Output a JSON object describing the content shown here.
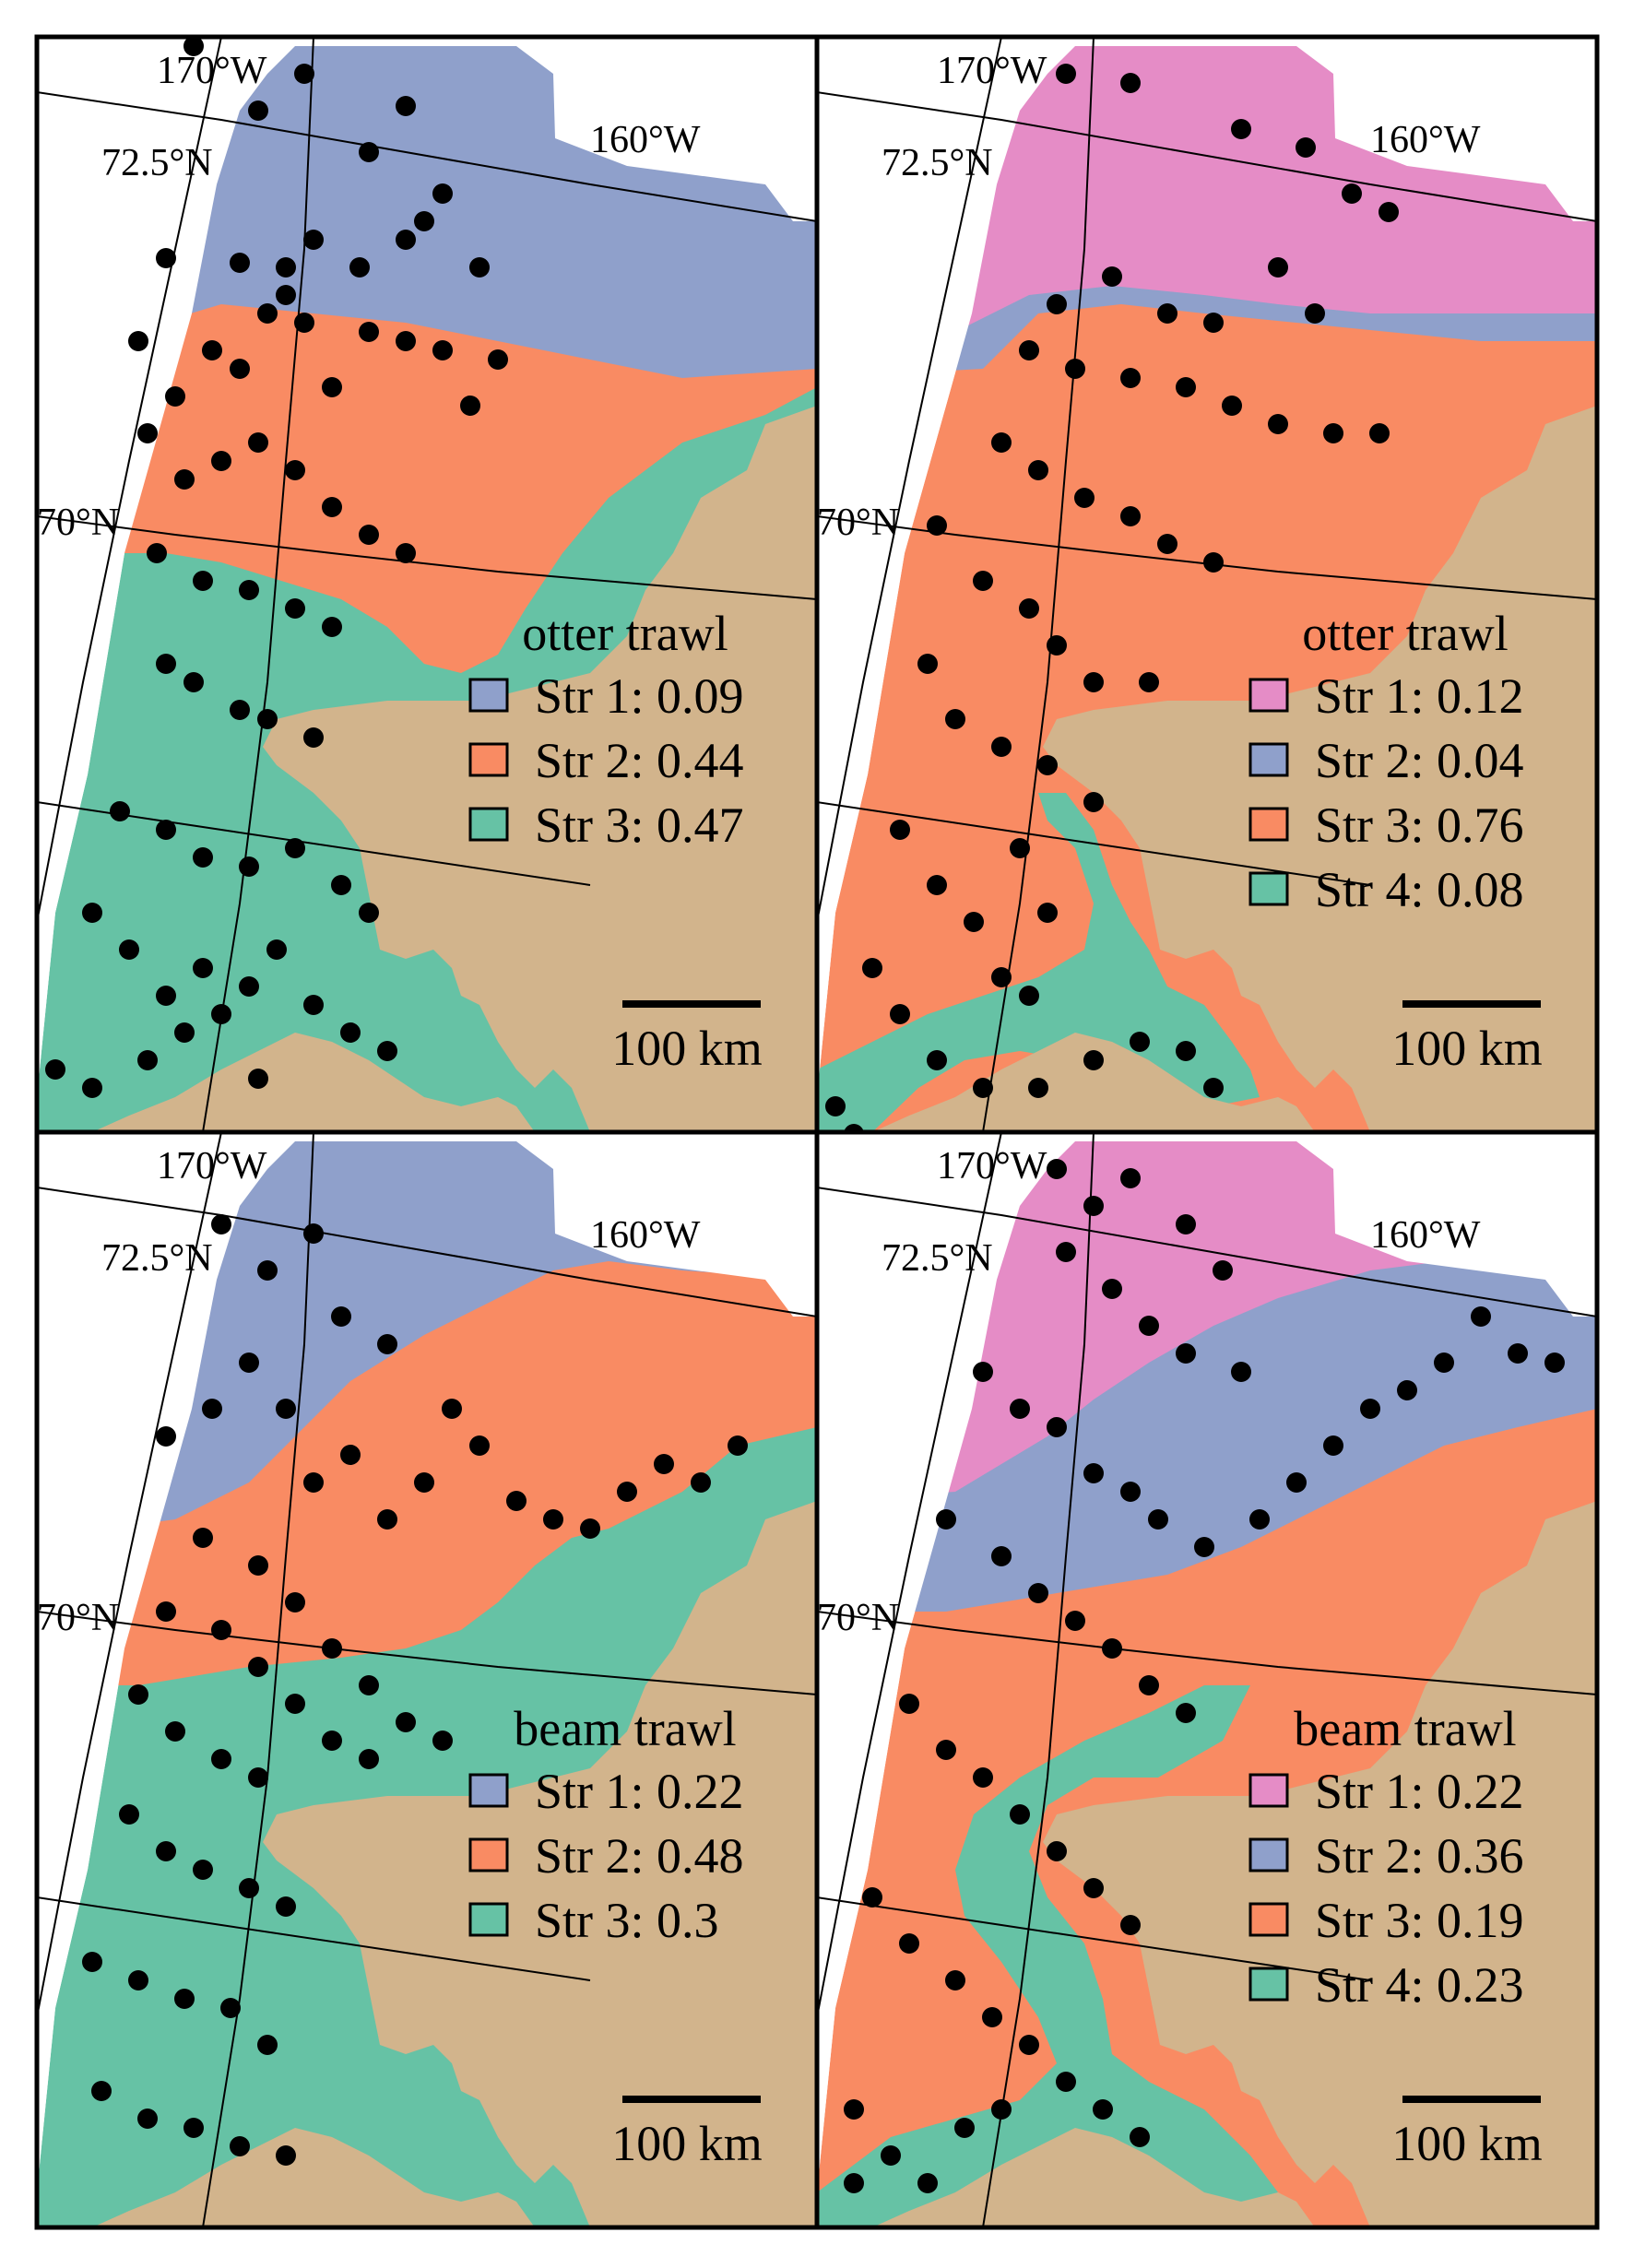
{
  "colors": {
    "land": "#d2b48c",
    "pink": "#e58cc6",
    "blue": "#8fa0cb",
    "orange": "#f98b63",
    "green": "#66c2a5",
    "station": "#000000",
    "water": "#ffffff"
  },
  "coord_labels": {
    "lon_170": "170°W",
    "lon_160": "160°W",
    "lat_72_5": "72.5°N",
    "lat_70": "70°N"
  },
  "scale_bar": {
    "label": "100 km"
  },
  "panels": [
    {
      "gear": "otter trawl",
      "legend": [
        {
          "label": "Str 1: 0.09",
          "color": "#8fa0cb"
        },
        {
          "label": "Str 2: 0.44",
          "color": "#f98b63"
        },
        {
          "label": "Str 3: 0.47",
          "color": "#66c2a5"
        }
      ]
    },
    {
      "gear": "otter trawl",
      "legend": [
        {
          "label": "Str 1: 0.12",
          "color": "#e58cc6"
        },
        {
          "label": "Str 2: 0.04",
          "color": "#8fa0cb"
        },
        {
          "label": "Str 3: 0.76",
          "color": "#f98b63"
        },
        {
          "label": "Str 4: 0.08",
          "color": "#66c2a5"
        }
      ]
    },
    {
      "gear": "beam trawl",
      "legend": [
        {
          "label": "Str 1: 0.22",
          "color": "#8fa0cb"
        },
        {
          "label": "Str 2: 0.48",
          "color": "#f98b63"
        },
        {
          "label": "Str 3: 0.3",
          "color": "#66c2a5"
        }
      ]
    },
    {
      "gear": "beam trawl",
      "legend": [
        {
          "label": "Str 1: 0.22",
          "color": "#e58cc6"
        },
        {
          "label": "Str 2: 0.36",
          "color": "#8fa0cb"
        },
        {
          "label": "Str 3: 0.19",
          "color": "#f98b63"
        },
        {
          "label": "Str 4: 0.23",
          "color": "#66c2a5"
        }
      ]
    }
  ]
}
